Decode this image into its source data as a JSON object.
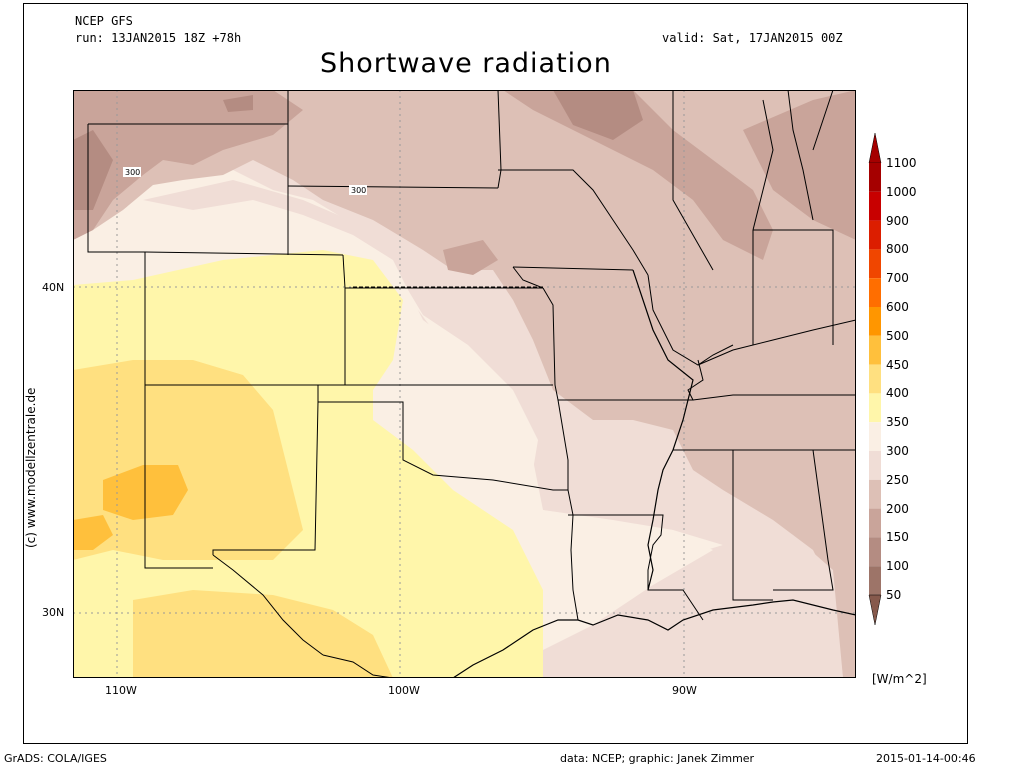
{
  "header": {
    "model": "NCEP GFS",
    "run": "run: 13JAN2015 18Z +78h",
    "valid": "valid: Sat, 17JAN2015 00Z",
    "title": "Shortwave radiation"
  },
  "side_credit": "(c) www.modellzentrale.de",
  "axes": {
    "lon_labels": [
      "110W",
      "100W",
      "90W"
    ],
    "lat_labels": [
      "40N",
      "30N"
    ]
  },
  "contour_labels": [
    "300",
    "300"
  ],
  "colorbar": {
    "unit": "[W/m^2]",
    "levels": [
      "1100",
      "1000",
      "900",
      "800",
      "700",
      "600",
      "500",
      "450",
      "400",
      "350",
      "300",
      "250",
      "200",
      "150",
      "100",
      "50"
    ],
    "colors": [
      "#a50000",
      "#c80000",
      "#dc1e00",
      "#f04600",
      "#ff6e00",
      "#ff9600",
      "#ffc03c",
      "#ffe080",
      "#fff6aa",
      "#faefe4",
      "#f0ddd6",
      "#ddc0b6",
      "#c9a49a",
      "#b48c82",
      "#9d7468",
      "#86594c"
    ]
  },
  "footer": {
    "left": "GrADS: COLA/IGES",
    "center": "data: NCEP; graphic: Janek Zimmer",
    "right": "2015-01-14-00:46"
  }
}
